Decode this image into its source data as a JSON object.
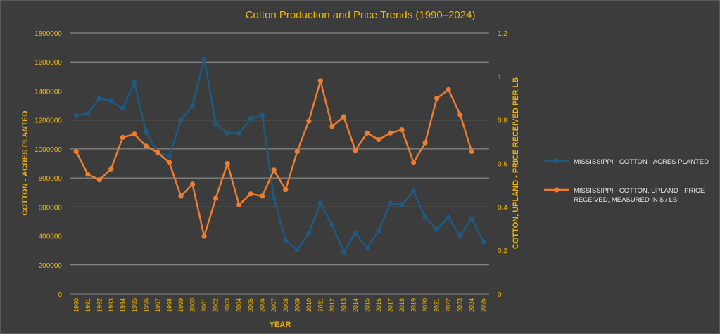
{
  "chart_data": {
    "type": "line",
    "title": "Cotton Production and Price Trends (1990–2024)",
    "xlabel": "YEAR",
    "ylabel_left": "COTTON - ACRES PLANTED",
    "ylabel_right": "COTTON, UPLAND - PRICE RECEIVED PER LB",
    "ylim_left": [
      0,
      1800000
    ],
    "ylim_right": [
      0,
      1.2
    ],
    "yticks_left": [
      "0",
      "200000",
      "400000",
      "600000",
      "800000",
      "1000000",
      "1200000",
      "1400000",
      "1600000",
      "1800000"
    ],
    "yticks_right": [
      "0",
      "0.2",
      "0.4",
      "0.6",
      "0.8",
      "1",
      "1.2"
    ],
    "categories": [
      "1990",
      "1991",
      "1992",
      "1993",
      "1994",
      "1995",
      "1996",
      "1997",
      "1998",
      "1999",
      "2000",
      "2001",
      "2002",
      "2003",
      "2004",
      "2005",
      "2006",
      "2007",
      "2008",
      "2009",
      "2010",
      "2011",
      "2012",
      "2013",
      "2014",
      "2015",
      "2016",
      "2017",
      "2018",
      "2019",
      "2020",
      "2021",
      "2022",
      "2023",
      "2024",
      "2025"
    ],
    "grid": true,
    "legend_position": "right",
    "series": [
      {
        "name": "MISSISSIPPI - COTTON - ACRES PLANTED",
        "axis": "left",
        "color": "#1f5a82",
        "values": [
          1230000,
          1245000,
          1350000,
          1330000,
          1280000,
          1460000,
          1120000,
          975000,
          950000,
          1200000,
          1300000,
          1620000,
          1175000,
          1110000,
          1110000,
          1210000,
          1230000,
          660000,
          370000,
          305000,
          420000,
          625000,
          475000,
          290000,
          420000,
          315000,
          435000,
          625000,
          615000,
          710000,
          530000,
          445000,
          530000,
          400000,
          520000,
          360000
        ]
      },
      {
        "name": "MISSISSIPPI - COTTON, UPLAND - PRICE RECEIVED, MEASURED IN $ / LB",
        "axis": "right",
        "color": "#ed7d31",
        "values": [
          0.655,
          0.55,
          0.525,
          0.575,
          0.72,
          0.735,
          0.68,
          0.65,
          0.605,
          0.45,
          0.505,
          0.265,
          0.44,
          0.6,
          0.41,
          0.46,
          0.45,
          0.57,
          0.48,
          0.655,
          0.795,
          0.98,
          0.77,
          0.815,
          0.66,
          0.74,
          0.71,
          0.74,
          0.755,
          0.605,
          0.695,
          0.9,
          0.94,
          0.825,
          0.655,
          null
        ]
      }
    ]
  }
}
